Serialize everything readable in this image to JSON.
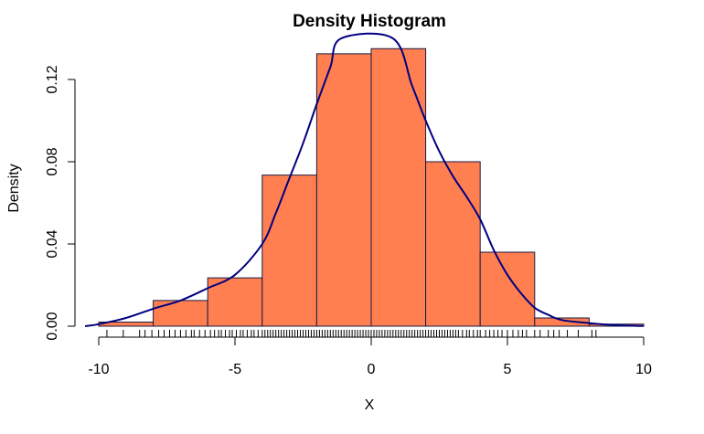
{
  "chart_data": {
    "type": "histogram",
    "title": "Density Histogram",
    "xlabel": "X",
    "ylabel": "Density",
    "xlim": [
      -10.5,
      10
    ],
    "ylim": [
      0,
      0.135
    ],
    "x_ticks": [
      -10,
      -5,
      0,
      5,
      10
    ],
    "x_tick_labels": [
      "-10",
      "-5",
      "0",
      "5",
      "10"
    ],
    "y_ticks": [
      0.0,
      0.04,
      0.08,
      0.12
    ],
    "y_tick_labels": [
      "0.00",
      "0.04",
      "0.08",
      "0.12"
    ],
    "bins": [
      {
        "start": -10,
        "end": -8,
        "density": 0.002
      },
      {
        "start": -8,
        "end": -6,
        "density": 0.0125
      },
      {
        "start": -6,
        "end": -4,
        "density": 0.0235
      },
      {
        "start": -4,
        "end": -2,
        "density": 0.0735
      },
      {
        "start": -2,
        "end": 0,
        "density": 0.1325
      },
      {
        "start": 0,
        "end": 2,
        "density": 0.135
      },
      {
        "start": 2,
        "end": 4,
        "density": 0.08
      },
      {
        "start": 4,
        "end": 6,
        "density": 0.036
      },
      {
        "start": 6,
        "end": 8,
        "density": 0.004
      },
      {
        "start": 8,
        "end": 10,
        "density": 0.001
      }
    ],
    "density_curve": {
      "x": [
        -10.5,
        -10,
        -9,
        -8,
        -7,
        -6,
        -5,
        -4,
        -3.5,
        -3,
        -2.5,
        -2,
        -1.5,
        -1.1,
        0.8,
        1.5,
        2,
        2.5,
        3,
        3.5,
        4,
        4.5,
        5,
        5.5,
        6,
        6.5,
        7,
        8,
        9,
        10
      ],
      "y": [
        0.0,
        0.001,
        0.004,
        0.0085,
        0.0125,
        0.0185,
        0.025,
        0.04,
        0.055,
        0.072,
        0.089,
        0.108,
        0.126,
        0.14,
        0.14,
        0.117,
        0.1,
        0.085,
        0.073,
        0.063,
        0.052,
        0.037,
        0.025,
        0.016,
        0.009,
        0.0055,
        0.003,
        0.0015,
        0.0005,
        0.0001
      ]
    },
    "rug": [
      -9.7,
      -9.1,
      -8.5,
      -8.3,
      -8.05,
      -7.8,
      -7.6,
      -7.4,
      -7.2,
      -7.0,
      -6.8,
      -6.6,
      -6.5,
      -6.3,
      -6.1,
      -5.9,
      -5.75,
      -5.6,
      -5.5,
      -5.35,
      -5.2,
      -5.1,
      -4.95,
      -4.8,
      -4.7,
      -4.55,
      -4.4,
      -4.3,
      -4.15,
      -4.0,
      -3.9,
      -3.8,
      -3.7,
      -3.6,
      -3.5,
      -3.4,
      -3.3,
      -3.2,
      -3.1,
      -3.0,
      -2.9,
      -2.8,
      -2.7,
      -2.6,
      -2.5,
      -2.4,
      -2.3,
      -2.2,
      -2.1,
      -2.0,
      -1.9,
      -1.8,
      -1.7,
      -1.6,
      -1.5,
      -1.4,
      -1.3,
      -1.2,
      -1.1,
      -1.0,
      -0.9,
      -0.8,
      -0.7,
      -0.6,
      -0.5,
      -0.4,
      -0.3,
      -0.2,
      -0.1,
      0.0,
      0.1,
      0.2,
      0.3,
      0.4,
      0.5,
      0.6,
      0.7,
      0.8,
      0.9,
      1.0,
      1.1,
      1.2,
      1.3,
      1.4,
      1.5,
      1.6,
      1.7,
      1.8,
      1.9,
      2.0,
      2.1,
      2.2,
      2.3,
      2.4,
      2.5,
      2.6,
      2.7,
      2.8,
      2.9,
      3.0,
      3.1,
      3.2,
      3.35,
      3.5,
      3.6,
      3.75,
      3.9,
      4.0,
      4.2,
      4.35,
      4.5,
      4.65,
      4.8,
      5.0,
      5.2,
      5.4,
      5.55,
      5.7,
      6.0,
      6.2,
      6.5,
      6.7,
      6.9,
      7.2,
      7.6,
      8.1,
      8.25
    ],
    "colors": {
      "bar_fill": "#ff7f50",
      "bar_stroke": "#1a1a40",
      "curve": "#000080",
      "rug": "#000000"
    }
  }
}
